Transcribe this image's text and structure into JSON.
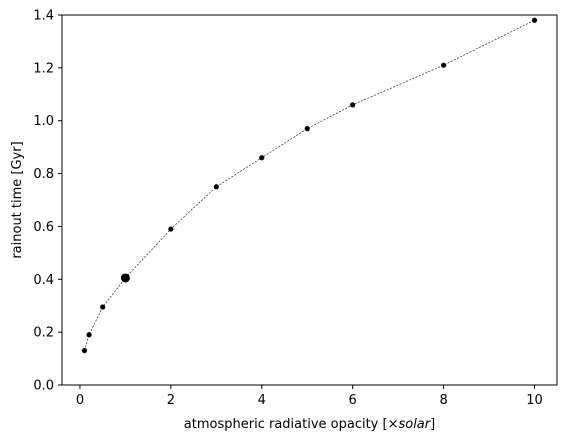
{
  "chart_data": {
    "type": "line",
    "xlabel_prefix": "atmospheric radiative opacity [×",
    "xlabel_italic": "solar",
    "xlabel_suffix": "]",
    "ylabel": "rainout time [Gyr]",
    "xlim": [
      -0.395,
      10.495
    ],
    "ylim": [
      0.0,
      1.4
    ],
    "xticks": [
      0,
      2,
      4,
      6,
      8,
      10
    ],
    "yticks": [
      0.0,
      0.2,
      0.4,
      0.6,
      0.8,
      1.0,
      1.2,
      1.4
    ],
    "xtick_labels": [
      "0",
      "2",
      "4",
      "6",
      "8",
      "10"
    ],
    "ytick_labels": [
      "0.0",
      "0.2",
      "0.4",
      "0.6",
      "0.8",
      "1.0",
      "1.2",
      "1.4"
    ],
    "grid": false,
    "series": [
      {
        "x": [
          0.1,
          0.2,
          0.5,
          1.0,
          2.0,
          3.0,
          4.0,
          5.0,
          6.0,
          8.0,
          10.0
        ],
        "y": [
          0.13,
          0.19,
          0.295,
          0.405,
          0.59,
          0.75,
          0.86,
          0.97,
          1.06,
          1.21,
          1.38
        ],
        "color": "#000000",
        "line_style": "dashed",
        "highlight_x": 1.0
      }
    ]
  }
}
